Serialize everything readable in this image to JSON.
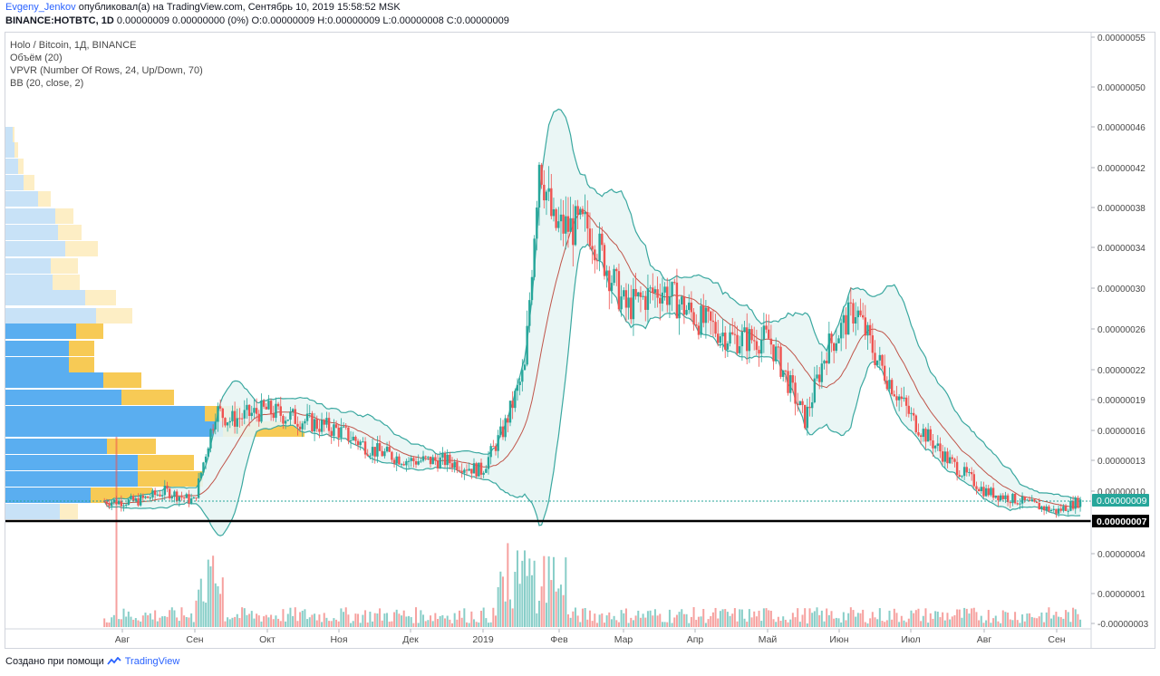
{
  "header": {
    "author": "Evgeny_Jenkov",
    "published_text": "опубликовал(а) на TradingView.com, Сентябрь 10, 2019 15:58:52 MSK",
    "symbol": "BINANCE:HOTBTC, 1D",
    "ohlc_text": "0.00000009 0.00000000 (0%) O:0.00000009 H:0.00000009 L:0.00000008 C:0.00000009"
  },
  "legend": {
    "title": "Holo / Bitcoin, 1Д, BINANCE",
    "volume": "Объём (20)",
    "vpvr": "VPVR (Number Of Rows, 24, Up/Down, 70)",
    "bb": "BB (20, close, 2)"
  },
  "footer": {
    "created_with": "Создано при помощи",
    "brand": "TradingView"
  },
  "colors": {
    "up": "#26a69a",
    "down": "#ef5350",
    "bb_band": "#3aa8a0",
    "bb_fill": "#e8f5f4",
    "bb_basis": "#c0554a",
    "vpvr_up_hi": "#5aaef0",
    "vpvr_up_lo": "#c8e2f7",
    "vpvr_down_hi": "#f7ca55",
    "vpvr_down_lo": "#fdeec5",
    "support": "#000000",
    "last_price": "#26a69a"
  },
  "chart_data": {
    "type": "candlestick",
    "x_ticks": [
      "Авг",
      "Сен",
      "Окт",
      "Ноя",
      "Дек",
      "2019",
      "Фев",
      "Мар",
      "Апр",
      "Май",
      "Июн",
      "Июл",
      "Авг",
      "Сен"
    ],
    "y_ticks": [
      "0.00000055",
      "0.00000050",
      "0.00000046",
      "0.00000042",
      "0.00000038",
      "0.00000034",
      "0.00000030",
      "0.00000026",
      "0.00000022",
      "0.00000019",
      "0.00000016",
      "0.00000013",
      "0.00000010",
      "0.00000004",
      "0.00000001",
      "-0.00000003"
    ],
    "last_price_label": "0.00000009",
    "support_label": "0.00000007",
    "price_series": [
      {
        "t": 0,
        "c": 9e-08
      },
      {
        "t": 0.2,
        "c": 9e-08
      },
      {
        "t": 0.6,
        "c": 1e-07
      },
      {
        "t": 1.0,
        "c": 9e-08
      },
      {
        "t": 1.3,
        "c": 1.8e-07
      },
      {
        "t": 1.5,
        "c": 1.7e-07
      },
      {
        "t": 2.0,
        "c": 1.8e-07
      },
      {
        "t": 2.5,
        "c": 1.7e-07
      },
      {
        "t": 3.0,
        "c": 1.6e-07
      },
      {
        "t": 3.5,
        "c": 1.4e-07
      },
      {
        "t": 4.0,
        "c": 1.3e-07
      },
      {
        "t": 4.5,
        "c": 1.3e-07
      },
      {
        "t": 5.0,
        "c": 1.2e-07
      },
      {
        "t": 5.3,
        "c": 1.6e-07
      },
      {
        "t": 5.6,
        "c": 2.2e-07
      },
      {
        "t": 5.8,
        "c": 4.3e-07
      },
      {
        "t": 6.0,
        "c": 3.6e-07
      },
      {
        "t": 6.5,
        "c": 3.6e-07
      },
      {
        "t": 7.0,
        "c": 2.8e-07
      },
      {
        "t": 7.5,
        "c": 3e-07
      },
      {
        "t": 8.0,
        "c": 2.7e-07
      },
      {
        "t": 8.5,
        "c": 2.5e-07
      },
      {
        "t": 9.0,
        "c": 2.5e-07
      },
      {
        "t": 9.5,
        "c": 1.7e-07
      },
      {
        "t": 9.8,
        "c": 2.4e-07
      },
      {
        "t": 10.2,
        "c": 2.8e-07
      },
      {
        "t": 10.5,
        "c": 2.3e-07
      },
      {
        "t": 11.0,
        "c": 1.7e-07
      },
      {
        "t": 11.5,
        "c": 1.3e-07
      },
      {
        "t": 12.0,
        "c": 1e-07
      },
      {
        "t": 12.5,
        "c": 9e-08
      },
      {
        "t": 13.0,
        "c": 8e-08
      },
      {
        "t": 13.3,
        "c": 9e-08
      }
    ]
  }
}
